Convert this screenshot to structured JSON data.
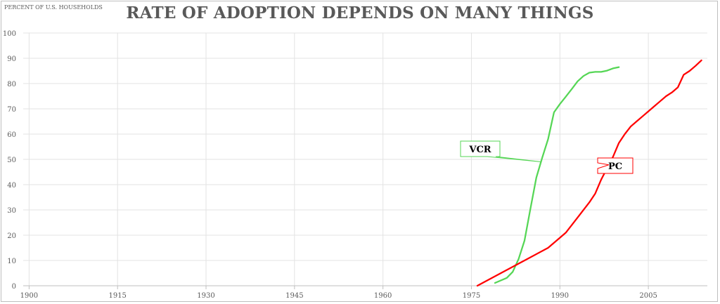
{
  "chart_data": {
    "type": "line",
    "title": "RATE OF ADOPTION DEPENDS ON MANY THINGS",
    "ylabel": "PERCENT OF U.S. HOUSEHOLDS",
    "xlabel": "",
    "xlim": [
      1899,
      2015
    ],
    "ylim": [
      0,
      100
    ],
    "x_ticks": [
      1900,
      1915,
      1930,
      1945,
      1960,
      1975,
      1990,
      2005
    ],
    "y_ticks": [
      0,
      10,
      20,
      30,
      40,
      50,
      60,
      70,
      80,
      90,
      100
    ],
    "grid": true,
    "series": [
      {
        "name": "VCR",
        "color": "#55d655",
        "x": [
          1979,
          1981,
          1982,
          1983,
          1984,
          1985,
          1986,
          1987,
          1988,
          1989,
          1990,
          1991,
          1992,
          1993,
          1994,
          1995,
          1996,
          1997,
          1998,
          1999,
          2000
        ],
        "y": [
          1.1,
          3.1,
          5.5,
          10.6,
          17.9,
          30.5,
          42.8,
          50.6,
          58.0,
          68.6,
          71.9,
          74.8,
          77.8,
          80.9,
          83.0,
          84.3,
          84.6,
          84.6,
          85.1,
          86.0,
          86.5
        ]
      },
      {
        "name": "PC",
        "color": "#ff0000",
        "x": [
          1976,
          1980,
          1984,
          1988,
          1990,
          1991,
          1993,
          1995,
          1996,
          1997,
          1998,
          1999,
          2000,
          2001,
          2002,
          2003,
          2004,
          2005,
          2006,
          2007,
          2008,
          2009,
          2010,
          2011,
          2012,
          2013,
          2014
        ],
        "y": [
          0.0,
          5.0,
          10.0,
          15.0,
          19.0,
          21.0,
          27.0,
          33.0,
          36.5,
          42.0,
          46.5,
          51.0,
          56.5,
          60.0,
          63.0,
          65.0,
          67.0,
          69.0,
          71.0,
          73.0,
          75.0,
          76.5,
          78.5,
          83.5,
          85.0,
          87.0,
          89.2
        ]
      }
    ],
    "annotations": [
      {
        "text": "VCR",
        "series": "VCR",
        "color": "#55d655"
      },
      {
        "text": "PC",
        "series": "PC",
        "color": "#ff0000"
      }
    ]
  }
}
